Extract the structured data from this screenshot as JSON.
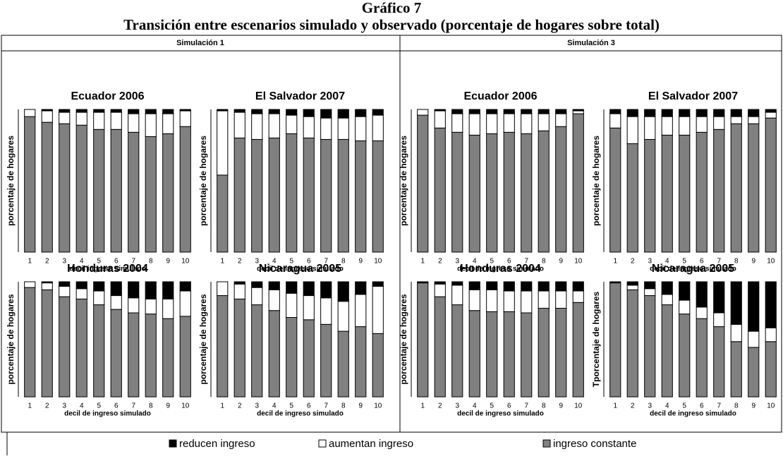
{
  "title": "Gráfico 7",
  "subtitle": "Transición entre escenarios simulado  y observado (porcentaje de hogares sobre total)",
  "panels": [
    "Simulación 1",
    "Simulación 3"
  ],
  "chart_data": [
    {
      "type": "bar",
      "stacked": true,
      "title": "Ecuador 2006",
      "y_label": "porcentaje de hogares",
      "x_label": "decil ingreso simulado",
      "categories": [
        "1",
        "2",
        "3",
        "4",
        "5",
        "6",
        "7",
        "8",
        "9",
        "10"
      ],
      "ylim": [
        0,
        100
      ],
      "series": [
        {
          "name": "reducen ingreso",
          "color": "#000000",
          "values": [
            0,
            1,
            2,
            2,
            2,
            2,
            3,
            3,
            3,
            1
          ]
        },
        {
          "name": "aumentan ingreso",
          "color": "#ffffff",
          "values": [
            5,
            8,
            8,
            9,
            12,
            12,
            13,
            16,
            14,
            11
          ]
        },
        {
          "name": "ingreso constante",
          "color": "#808080",
          "values": [
            95,
            91,
            90,
            89,
            86,
            86,
            84,
            81,
            83,
            88
          ]
        }
      ]
    },
    {
      "type": "bar",
      "stacked": true,
      "title": "El Salvador 2007",
      "y_label": "porcentaje de hogares",
      "x_label": "decil de ingreso simulado",
      "categories": [
        "1",
        "2",
        "3",
        "4",
        "5",
        "6",
        "7",
        "8",
        "9",
        "10"
      ],
      "ylim": [
        0,
        100
      ],
      "series": [
        {
          "name": "reducen ingreso",
          "color": "#000000",
          "values": [
            1,
            2,
            3,
            3,
            4,
            5,
            6,
            6,
            5,
            4
          ]
        },
        {
          "name": "aumentan ingreso",
          "color": "#ffffff",
          "values": [
            45,
            18,
            18,
            17,
            13,
            15,
            15,
            15,
            17,
            18
          ]
        },
        {
          "name": "ingreso constante",
          "color": "#808080",
          "values": [
            54,
            80,
            79,
            80,
            83,
            80,
            79,
            79,
            78,
            78
          ]
        }
      ]
    },
    {
      "type": "bar",
      "stacked": true,
      "title": "Ecuador 2006",
      "y_label": "porcentaje de hogares",
      "x_label": "decil de ingreso simulado",
      "categories": [
        "1",
        "2",
        "3",
        "4",
        "5",
        "6",
        "7",
        "8",
        "9",
        "10"
      ],
      "ylim": [
        0,
        100
      ],
      "series": [
        {
          "name": "reducen ingreso",
          "color": "#000000",
          "values": [
            0,
            1,
            3,
            3,
            3,
            3,
            3,
            3,
            3,
            1
          ]
        },
        {
          "name": "aumentan ingreso",
          "color": "#ffffff",
          "values": [
            4,
            12,
            13,
            15,
            14,
            13,
            14,
            12,
            9,
            2
          ]
        },
        {
          "name": "ingreso constante",
          "color": "#808080",
          "values": [
            96,
            87,
            84,
            82,
            83,
            84,
            83,
            85,
            88,
            97
          ]
        }
      ]
    },
    {
      "type": "bar",
      "stacked": true,
      "title": "El Salvador 2007",
      "y_label": "porcentaje de hogares",
      "x_label": "decil de ingreso simulado",
      "categories": [
        "1",
        "2",
        "3",
        "4",
        "5",
        "6",
        "7",
        "8",
        "9",
        "10"
      ],
      "ylim": [
        0,
        100
      ],
      "series": [
        {
          "name": "reducen ingreso",
          "color": "#000000",
          "values": [
            3,
            5,
            5,
            5,
            5,
            5,
            5,
            5,
            5,
            2
          ]
        },
        {
          "name": "aumentan ingreso",
          "color": "#ffffff",
          "values": [
            10,
            19,
            16,
            13,
            13,
            11,
            9,
            5,
            5,
            4
          ]
        },
        {
          "name": "ingreso constante",
          "color": "#808080",
          "values": [
            87,
            76,
            79,
            82,
            82,
            84,
            86,
            90,
            90,
            94
          ]
        }
      ]
    },
    {
      "type": "bar",
      "stacked": true,
      "title": "Honduras 2004",
      "y_label": "porcentaje de hogares",
      "x_label": "decil de ingreso simulado",
      "categories": [
        "1",
        "2",
        "3",
        "4",
        "5",
        "6",
        "7",
        "8",
        "9",
        "10"
      ],
      "ylim": [
        0,
        100
      ],
      "series": [
        {
          "name": "reducen ingreso",
          "color": "#000000",
          "values": [
            0,
            1,
            4,
            6,
            8,
            12,
            14,
            15,
            15,
            8
          ]
        },
        {
          "name": "aumentan ingreso",
          "color": "#ffffff",
          "values": [
            5,
            6,
            9,
            9,
            12,
            12,
            13,
            13,
            17,
            22
          ]
        },
        {
          "name": "ingreso constante",
          "color": "#808080",
          "values": [
            95,
            93,
            87,
            85,
            80,
            76,
            73,
            72,
            68,
            70
          ]
        }
      ]
    },
    {
      "type": "bar",
      "stacked": true,
      "title": "Nicaragua 2005",
      "y_label": "porcentaje de hogares",
      "x_label": "decil de ingreso simulado",
      "categories": [
        "1",
        "2",
        "3",
        "4",
        "5",
        "6",
        "7",
        "8",
        "9",
        "10"
      ],
      "ylim": [
        0,
        100
      ],
      "series": [
        {
          "name": "reducen ingreso",
          "color": "#000000",
          "values": [
            0,
            2,
            5,
            7,
            10,
            12,
            14,
            17,
            11,
            4
          ]
        },
        {
          "name": "aumentan ingreso",
          "color": "#ffffff",
          "values": [
            12,
            13,
            15,
            18,
            21,
            21,
            23,
            26,
            28,
            41
          ]
        },
        {
          "name": "ingreso constante",
          "color": "#808080",
          "values": [
            88,
            85,
            80,
            75,
            69,
            67,
            63,
            57,
            61,
            55
          ]
        }
      ]
    },
    {
      "type": "bar",
      "stacked": true,
      "title": "Honduras 2004",
      "y_label": "porcentaje de hogares",
      "x_label": "decil de ingreso simulado",
      "categories": [
        "1",
        "2",
        "3",
        "4",
        "5",
        "6",
        "7",
        "8",
        "9",
        "10"
      ],
      "ylim": [
        0,
        100
      ],
      "series": [
        {
          "name": "reducen ingreso",
          "color": "#000000",
          "values": [
            1,
            2,
            3,
            7,
            7,
            8,
            8,
            8,
            8,
            8
          ]
        },
        {
          "name": "aumentan ingreso",
          "color": "#ffffff",
          "values": [
            0,
            11,
            17,
            18,
            19,
            18,
            19,
            15,
            15,
            10
          ]
        },
        {
          "name": "ingreso constante",
          "color": "#808080",
          "values": [
            99,
            87,
            80,
            75,
            74,
            74,
            73,
            77,
            77,
            82
          ]
        }
      ]
    },
    {
      "type": "bar",
      "stacked": true,
      "title": "Nicaragua 2005",
      "y_label": "Tporcentaje de hogares",
      "x_label": "decil de ingreso simulado",
      "categories": [
        "1",
        "2",
        "3",
        "4",
        "5",
        "6",
        "7",
        "8",
        "9",
        "10"
      ],
      "ylim": [
        0,
        100
      ],
      "series": [
        {
          "name": "reducen ingreso",
          "color": "#000000",
          "values": [
            1,
            3,
            6,
            11,
            16,
            22,
            27,
            37,
            43,
            40
          ]
        },
        {
          "name": "aumentan ingreso",
          "color": "#ffffff",
          "values": [
            0,
            4,
            6,
            9,
            12,
            10,
            12,
            15,
            14,
            12
          ]
        },
        {
          "name": "ingreso constante",
          "color": "#808080",
          "values": [
            99,
            93,
            88,
            80,
            72,
            68,
            61,
            48,
            43,
            48
          ]
        }
      ]
    }
  ]
}
